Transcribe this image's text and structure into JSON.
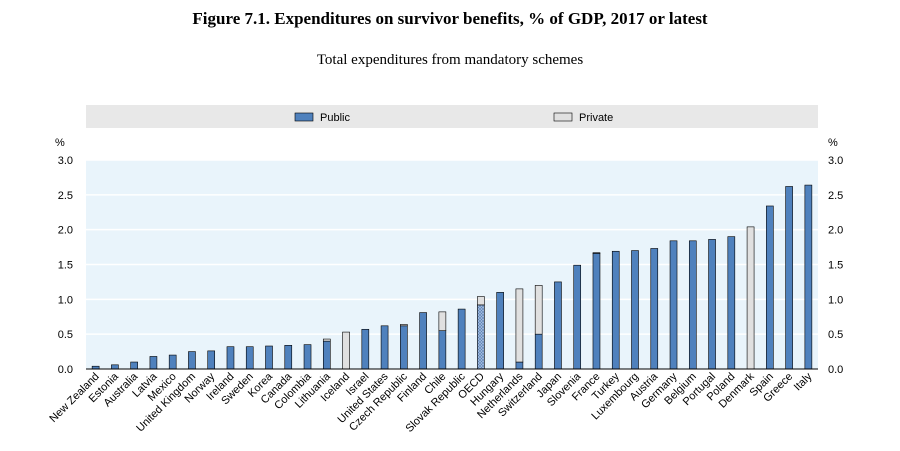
{
  "chart_data": {
    "type": "bar",
    "title": "Figure 7.1.  Expenditures on survivor benefits, % of GDP, 2017 or latest",
    "subtitle": "Total expenditures from mandatory schemes",
    "ylabel_left": "%",
    "ylabel_right": "%",
    "ylim": [
      0,
      3.0
    ],
    "yticks": [
      "0.0",
      "0.5",
      "1.0",
      "1.5",
      "2.0",
      "2.5",
      "3.0"
    ],
    "legend": {
      "public": "Public",
      "private": "Private"
    },
    "colors": {
      "public": "#4f81bd",
      "private": "#e0e0e0",
      "oecd": "#a7c1e4",
      "stroke": "#000000",
      "plot_bg": "#e9f4fb",
      "legend_bg": "#e8e8e8",
      "grid": "#ffffff"
    },
    "categories": [
      "New Zealand",
      "Estonia",
      "Australia",
      "Latvia",
      "Mexico",
      "United Kingdom",
      "Norway",
      "Ireland",
      "Sweden",
      "Korea",
      "Canada",
      "Colombia",
      "Lithuania",
      "Iceland",
      "Israel",
      "United States",
      "Czech Republic",
      "Finland",
      "Chile",
      "Slovak Republic",
      "OECD",
      "Hungary",
      "Netherlands",
      "Switzerland",
      "Japan",
      "Slovenia",
      "France",
      "Turkey",
      "Luxembourg",
      "Austria",
      "Germany",
      "Belgium",
      "Portugal",
      "Poland",
      "Denmark",
      "Spain",
      "Greece",
      "Italy"
    ],
    "series": [
      {
        "name": "Public",
        "values": [
          0.04,
          0.06,
          0.1,
          0.18,
          0.2,
          0.25,
          0.26,
          0.32,
          0.32,
          0.33,
          0.34,
          0.35,
          0.4,
          0.0,
          0.57,
          0.62,
          0.62,
          0.81,
          0.55,
          0.86,
          0.92,
          1.1,
          0.1,
          0.5,
          1.25,
          1.49,
          1.66,
          1.69,
          1.7,
          1.73,
          1.84,
          1.84,
          1.86,
          1.9,
          0.0,
          2.34,
          2.62,
          2.64
        ]
      },
      {
        "name": "Private",
        "values": [
          0,
          0,
          0,
          0,
          0,
          0,
          0,
          0,
          0,
          0,
          0,
          0,
          0.03,
          0.53,
          0,
          0,
          0.02,
          0,
          0.27,
          0,
          0.12,
          0,
          1.05,
          0.7,
          0,
          0,
          0.01,
          0,
          0,
          0,
          0,
          0,
          0,
          0,
          2.04,
          0,
          0,
          0
        ]
      }
    ]
  }
}
